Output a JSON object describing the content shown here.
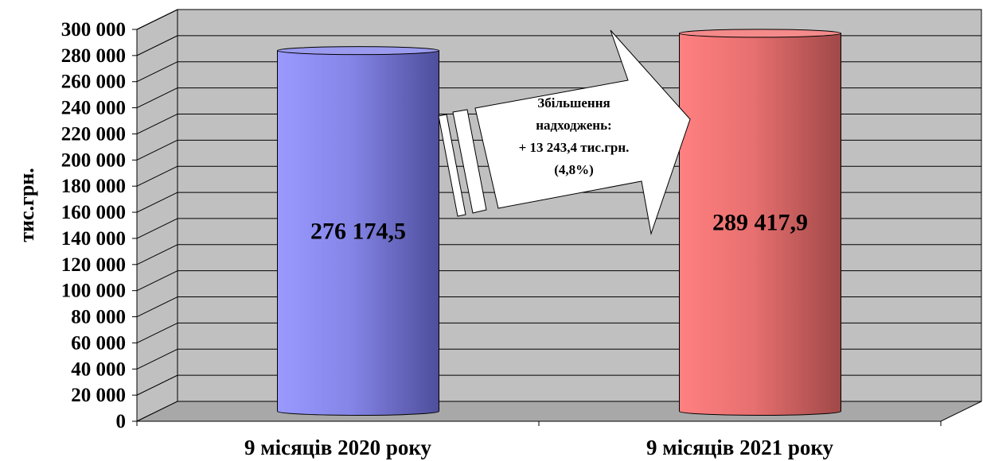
{
  "chart_data": {
    "type": "bar",
    "style": "3d-cylinder",
    "categories": [
      "9 місяців 2020 року",
      "9 місяців 2021 року"
    ],
    "values": [
      276174.5,
      289417.9
    ],
    "data_labels": [
      "276 174,5",
      "289 417,9"
    ],
    "ylabel": "тис.грн.",
    "ylim": [
      0,
      300000
    ],
    "ytick_step": 20000,
    "ytick_labels": [
      "0",
      "20 000",
      "40 000",
      "60 000",
      "80 000",
      "100 000",
      "120 000",
      "140 000",
      "160 000",
      "180 000",
      "200 000",
      "220 000",
      "240 000",
      "260 000",
      "280 000",
      "300 000"
    ],
    "grid": true,
    "legend": "none",
    "bar_colors": [
      "#8f8ff0",
      "#f07c7c"
    ],
    "wall_color": "#c0c0c0",
    "annotation": {
      "lines": [
        "Збільшення",
        "надходжень:",
        "+ 13 243,4 тис.грн.",
        "(4,8%)"
      ]
    }
  }
}
